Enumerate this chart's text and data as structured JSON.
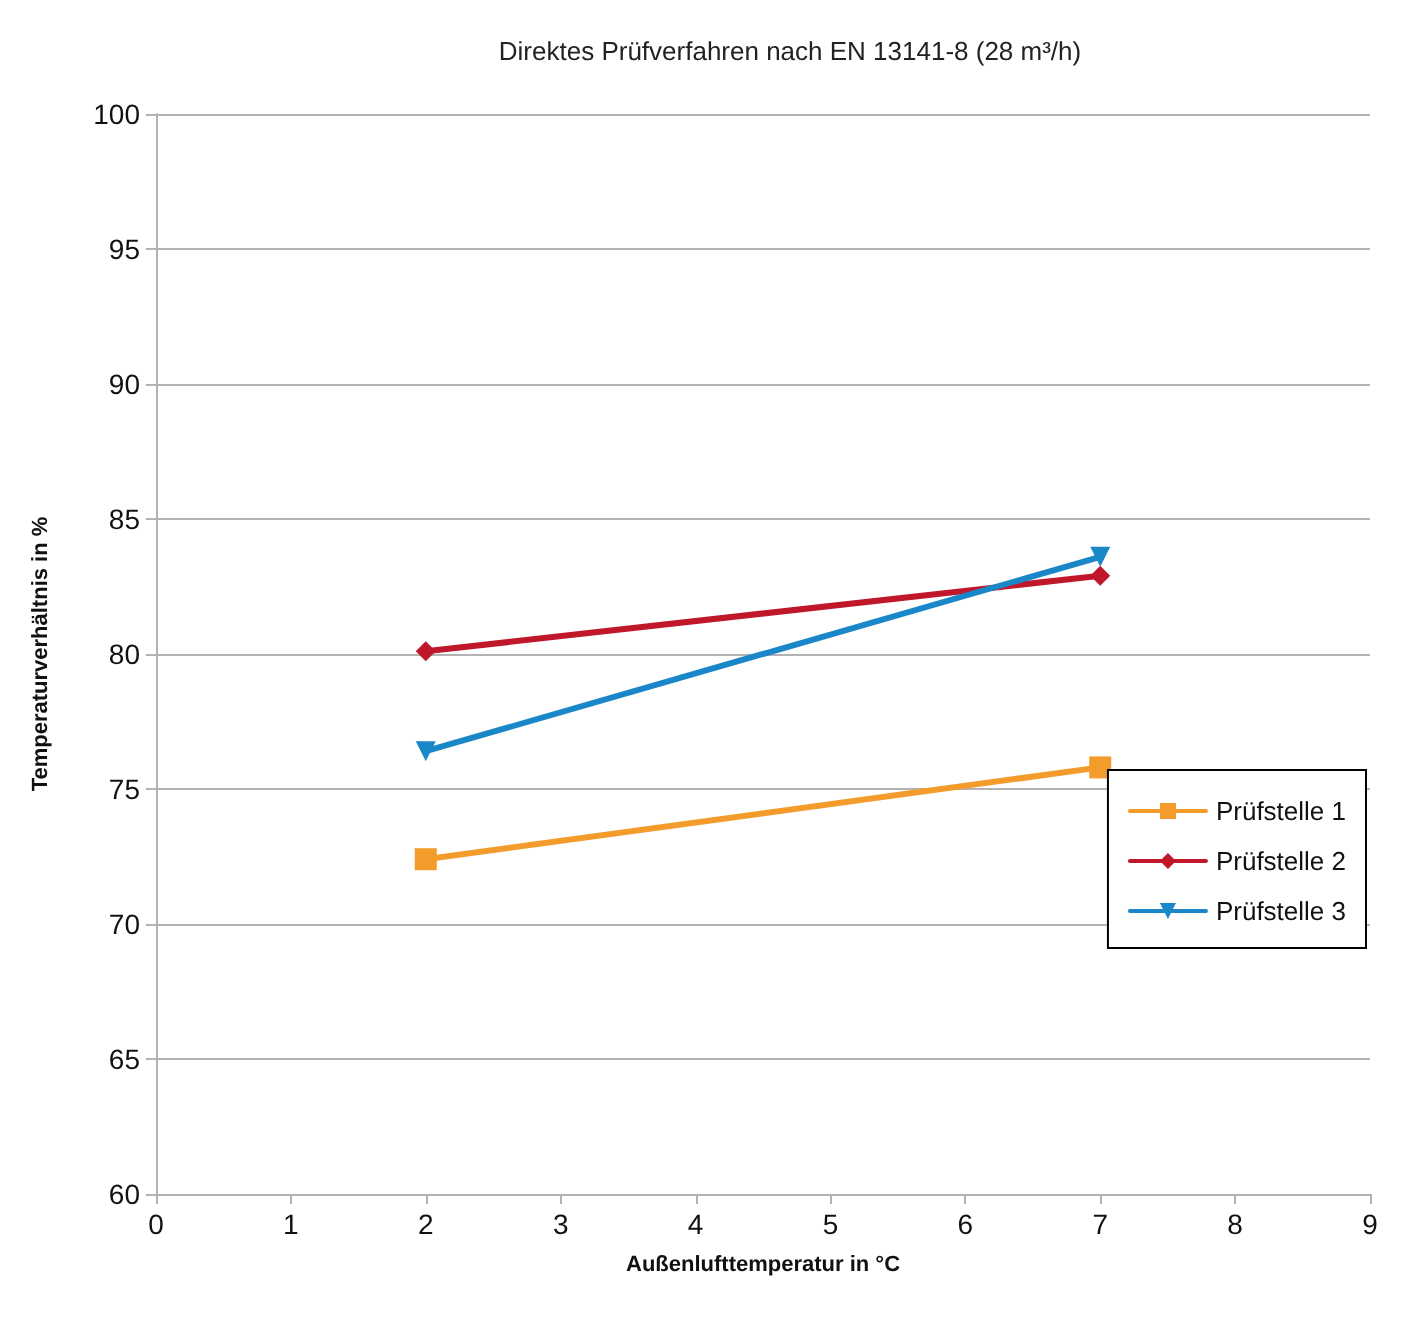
{
  "chart_data": {
    "type": "line",
    "title": "Direktes Prüfverfahren nach EN 13141-8 (28 m³/h)",
    "xlabel": "Außenlufttemperatur in °C",
    "ylabel": "Temperaturverhältnis in %",
    "x": [
      2,
      7
    ],
    "series": [
      {
        "name": "Prüfstelle 1",
        "color": "#f39c2c",
        "values": [
          72.4,
          75.8
        ],
        "marker": "square"
      },
      {
        "name": "Prüfstelle 2",
        "color": "#c0172b",
        "values": [
          80.1,
          82.9
        ],
        "marker": "diamond"
      },
      {
        "name": "Prüfstelle 3",
        "color": "#1a87c8",
        "values": [
          76.4,
          83.6
        ],
        "marker": "triangle"
      }
    ],
    "xlim": [
      0,
      9
    ],
    "xticks": [
      0,
      1,
      2,
      3,
      4,
      5,
      6,
      7,
      8,
      9
    ],
    "ylim": [
      60,
      100
    ],
    "yticks": [
      60,
      65,
      70,
      75,
      80,
      85,
      90,
      95,
      100
    ],
    "grid": "y",
    "legend": "right",
    "line_style": "solid"
  }
}
